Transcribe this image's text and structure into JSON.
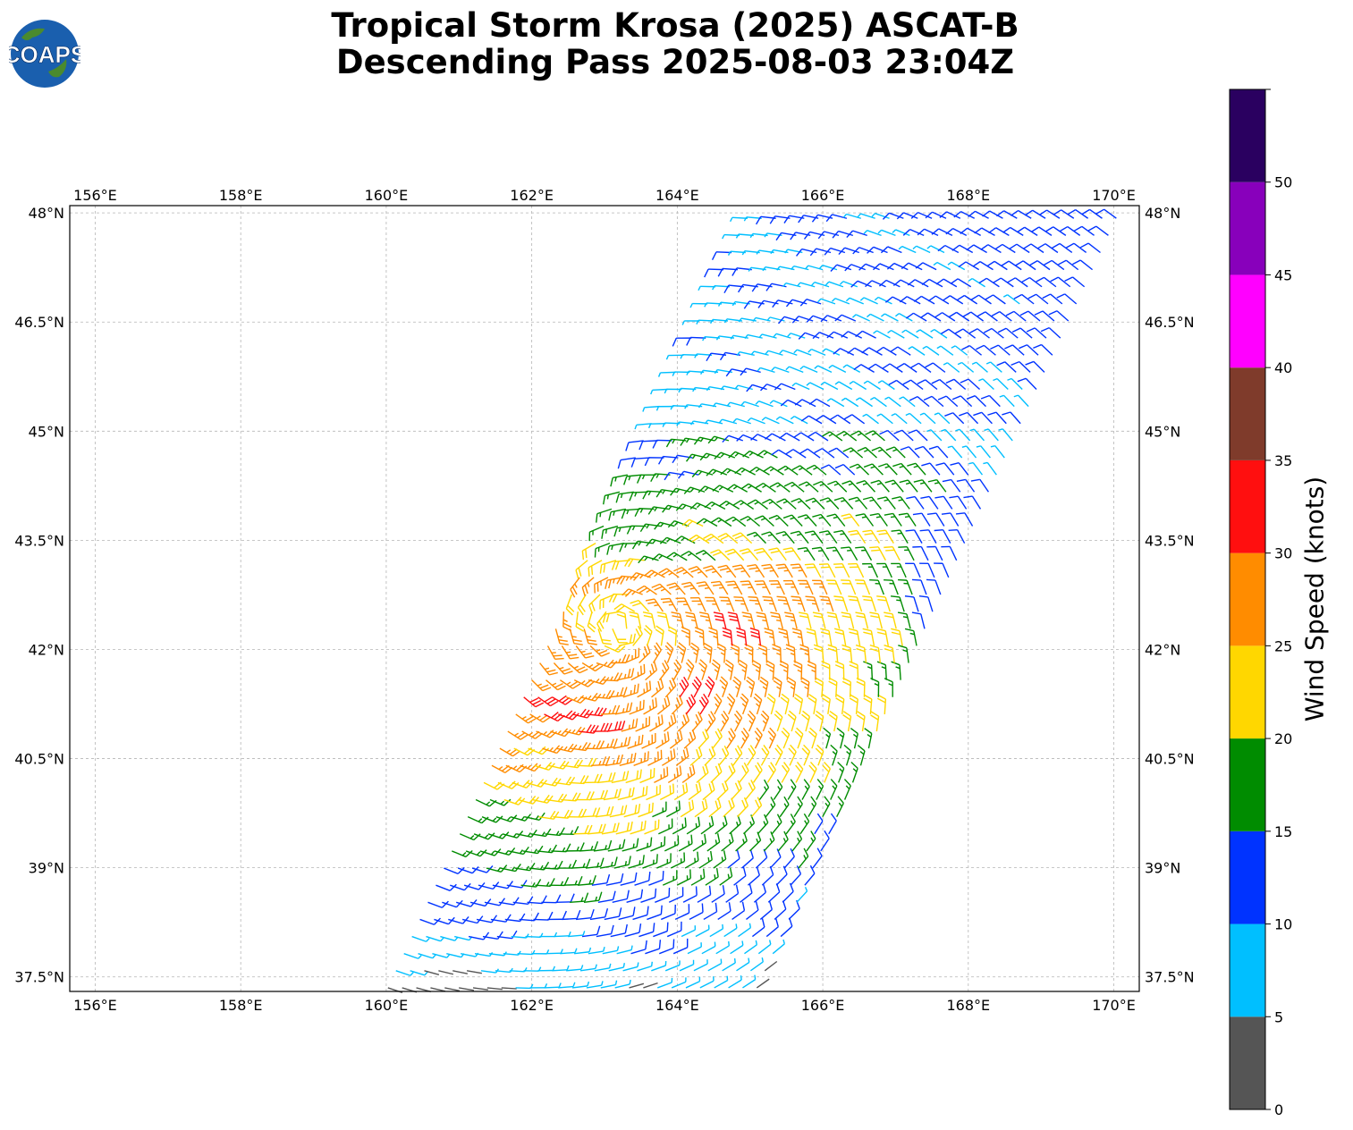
{
  "title": {
    "line1": "Tropical Storm Krosa (2025) ASCAT-B",
    "line2": "Descending Pass 2025-08-03 23:04Z"
  },
  "logo": {
    "text": "COAPS",
    "icon": "globe-logo-icon"
  },
  "map": {
    "lon_range": [
      155.65,
      170.35
    ],
    "lat_range": [
      37.3,
      48.1
    ],
    "lon_ticks": [
      {
        "value": 156,
        "label": "156°E"
      },
      {
        "value": 158,
        "label": "158°E"
      },
      {
        "value": 160,
        "label": "160°E"
      },
      {
        "value": 162,
        "label": "162°E"
      },
      {
        "value": 164,
        "label": "164°E"
      },
      {
        "value": 166,
        "label": "166°E"
      },
      {
        "value": 168,
        "label": "168°E"
      },
      {
        "value": 170,
        "label": "170°E"
      }
    ],
    "lat_ticks": [
      {
        "value": 37.5,
        "label": "37.5°N"
      },
      {
        "value": 39,
        "label": "39°N"
      },
      {
        "value": 40.5,
        "label": "40.5°N"
      },
      {
        "value": 42,
        "label": "42°N"
      },
      {
        "value": 43.5,
        "label": "43.5°N"
      },
      {
        "value": 45,
        "label": "45°N"
      },
      {
        "value": 46.5,
        "label": "46.5°N"
      },
      {
        "value": 48,
        "label": "48°N"
      }
    ],
    "gridlines": true,
    "storm_center": {
      "lon": 163.2,
      "lat": 42.3
    },
    "swath": {
      "dir_deg": 58,
      "inner_lon_at_37_3": 160.0,
      "inner_lon_at_48": 165.0,
      "outer_width_deg": 4.2
    }
  },
  "colorbar": {
    "label": "Wind Speed (knots)",
    "tick_labels": [
      "0",
      "5",
      "10",
      "15",
      "20",
      "25",
      "30",
      "35",
      "40",
      "45",
      "50"
    ],
    "bins": [
      {
        "min": 0,
        "max": 5,
        "color": "#555555"
      },
      {
        "min": 5,
        "max": 10,
        "color": "#00bfff"
      },
      {
        "min": 10,
        "max": 15,
        "color": "#0033ff"
      },
      {
        "min": 15,
        "max": 20,
        "color": "#008c00"
      },
      {
        "min": 20,
        "max": 25,
        "color": "#ffd700"
      },
      {
        "min": 25,
        "max": 30,
        "color": "#ff8c00"
      },
      {
        "min": 30,
        "max": 35,
        "color": "#ff0f0f"
      },
      {
        "min": 35,
        "max": 40,
        "color": "#7f3b2b"
      },
      {
        "min": 40,
        "max": 45,
        "color": "#ff00ff"
      },
      {
        "min": 45,
        "max": 50,
        "color": "#8800bb"
      },
      {
        "min": 50,
        "max": 55,
        "color": "#2a0060"
      }
    ]
  }
}
